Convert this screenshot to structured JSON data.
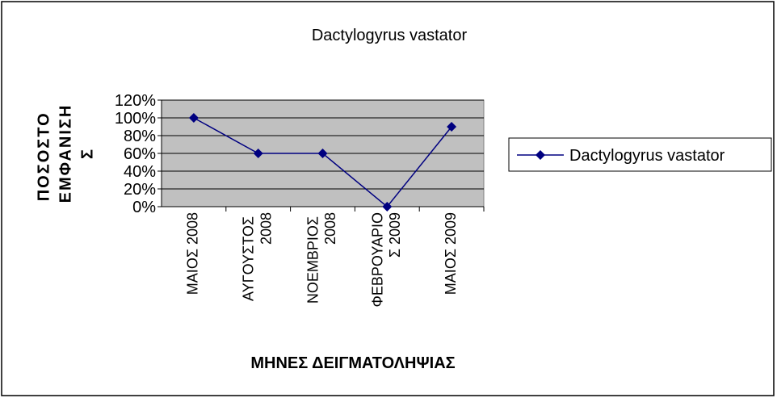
{
  "chart_data": {
    "type": "line",
    "title": "Dactylogyrus vastator",
    "x_label": "ΜΗΝΕΣ ΔΕΙΓΜΑΤΟΛΗΨΙΑΣ",
    "y_label": "ΠΟΣΟΣΤΟ ΕΜΦΑΝΙΣΗΣ",
    "categories": [
      "ΜΑΙΟΣ 2008",
      "ΑΥΓΟΥΣΤΟΣ 2008",
      "ΝΟΕΜΒΡΙΟΣ 2008",
      "ΦΕΒΡΟΥΑΡΙΟΣ 2009",
      "ΜΑΙΟΣ 2009"
    ],
    "series": [
      {
        "name": "Dactylogyrus vastator",
        "color": "#000080",
        "values": [
          100,
          60,
          60,
          0,
          90
        ]
      }
    ],
    "ylim": [
      0,
      120
    ],
    "yticks": [
      {
        "value": 0,
        "label": "0%"
      },
      {
        "value": 20,
        "label": "20%"
      },
      {
        "value": 40,
        "label": "40%"
      },
      {
        "value": 60,
        "label": "60%"
      },
      {
        "value": 80,
        "label": "80%"
      },
      {
        "value": 100,
        "label": "100%"
      },
      {
        "value": 120,
        "label": "120%"
      }
    ],
    "grid": true,
    "plot_background": "#c0c0c0",
    "legend": "right"
  }
}
